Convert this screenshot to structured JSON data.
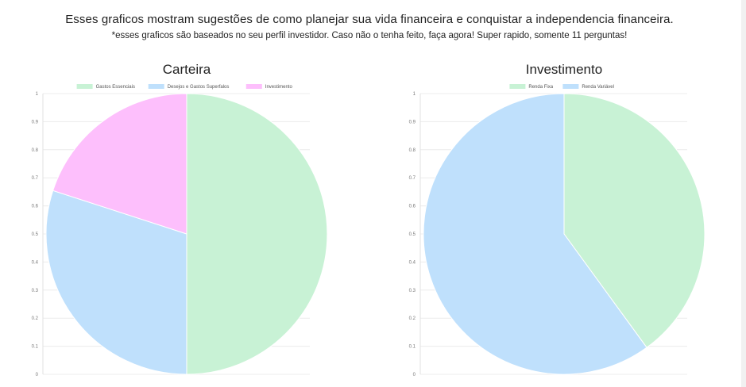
{
  "header": {
    "headline": "Esses graficos mostram sugestões de como planejar sua vida financeira e conquistar a independencia financeira.",
    "subline": "*esses graficos são baseados no seu perfil investidor. Caso não o tenha feito, faça agora! Super rapido, somente 11 perguntas!"
  },
  "chart_data": [
    {
      "type": "pie",
      "title": "Carteira",
      "categories": [
        "Gastos Essenciais",
        "Desejos e Gastos Superfalos",
        "Investimento"
      ],
      "values": [
        50,
        30,
        20
      ],
      "colors": [
        "#c8f2d5",
        "#bfe0fc",
        "#fdbffc"
      ],
      "legend": "top",
      "y_axis_ticks": [
        "0",
        "0.1",
        "0.2",
        "0.3",
        "0.4",
        "0.5",
        "0.6",
        "0.7",
        "0.8",
        "0.9",
        "1"
      ],
      "grid": true
    },
    {
      "type": "pie",
      "title": "Investimento",
      "categories": [
        "Renda Fixa",
        "Renda Variável"
      ],
      "values": [
        40,
        60
      ],
      "colors": [
        "#c8f2d5",
        "#bfe0fc"
      ],
      "legend": "top",
      "y_axis_ticks": [
        "0",
        "0.1",
        "0.2",
        "0.3",
        "0.4",
        "0.5",
        "0.6",
        "0.7",
        "0.8",
        "0.9",
        "1"
      ],
      "grid": true
    }
  ]
}
